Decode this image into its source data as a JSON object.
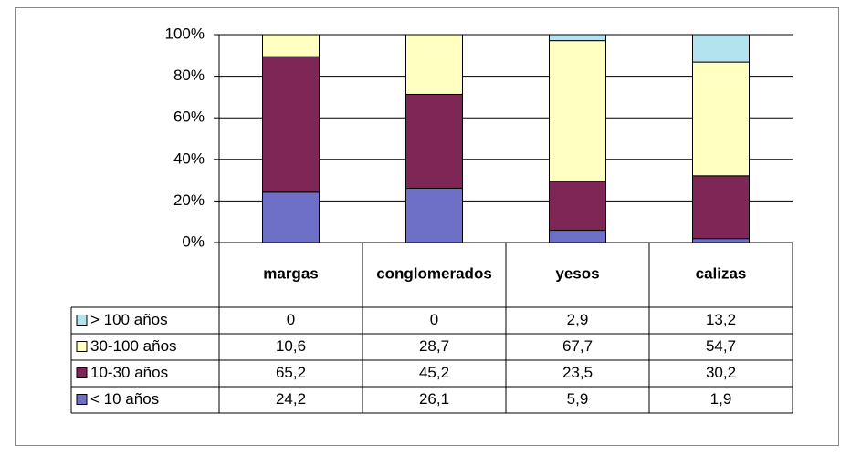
{
  "chart_data": {
    "type": "stacked-bar",
    "categories": [
      "margas",
      "conglomerados",
      "yesos",
      "calizas"
    ],
    "series": [
      {
        "name": "> 100 años",
        "color": "#b3e3ee",
        "values": [
          0,
          0,
          2.9,
          13.2
        ],
        "value_labels": [
          "0",
          "0",
          "2,9",
          "13,2"
        ]
      },
      {
        "name": "30-100 años",
        "color": "#ffffc2",
        "values": [
          10.6,
          28.7,
          67.7,
          54.7
        ],
        "value_labels": [
          "10,6",
          "28,7",
          "67,7",
          "54,7"
        ]
      },
      {
        "name": "10-30 años",
        "color": "#7e2656",
        "values": [
          65.2,
          45.2,
          23.5,
          30.2
        ],
        "value_labels": [
          "65,2",
          "45,2",
          "23,5",
          "30,2"
        ]
      },
      {
        "name": "< 10 años",
        "color": "#6e6fc6",
        "values": [
          24.2,
          26.1,
          5.9,
          1.9
        ],
        "value_labels": [
          "24,2",
          "26,1",
          "5,9",
          "1,9"
        ]
      }
    ],
    "ylim": [
      0,
      100
    ],
    "yticks": [
      {
        "value": 0,
        "label": "0%"
      },
      {
        "value": 20,
        "label": "20%"
      },
      {
        "value": 40,
        "label": "40%"
      },
      {
        "value": 60,
        "label": "60%"
      },
      {
        "value": 80,
        "label": "80%"
      },
      {
        "value": 100,
        "label": "100%"
      }
    ],
    "grid": true
  }
}
